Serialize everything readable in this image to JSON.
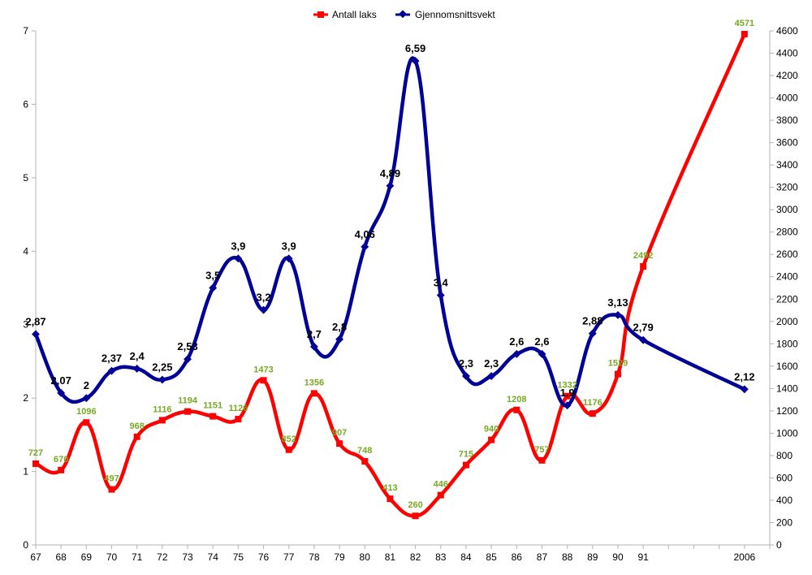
{
  "chart_data": {
    "type": "line",
    "categories": [
      "67",
      "68",
      "69",
      "70",
      "71",
      "72",
      "73",
      "74",
      "75",
      "76",
      "77",
      "78",
      "79",
      "80",
      "81",
      "82",
      "83",
      "84",
      "85",
      "86",
      "87",
      "88",
      "89",
      "90",
      "91",
      "",
      "",
      "",
      "2006"
    ],
    "series": [
      {
        "name": "Antall laks",
        "axis": "right",
        "color": "#ff0000",
        "marker": "square",
        "values": [
          727,
          670,
          1096,
          497,
          968,
          1116,
          1194,
          1151,
          1126,
          1473,
          852,
          1356,
          907,
          748,
          413,
          260,
          446,
          715,
          940,
          1208,
          757,
          1332,
          1176,
          1529,
          2492,
          null,
          null,
          null,
          4571
        ],
        "labels": [
          "727",
          "670",
          "1096",
          "497",
          "968",
          "1116",
          "1194",
          "1151",
          "1126",
          "1473",
          "852",
          "1356",
          "907",
          "748",
          "413",
          "260",
          "446",
          "715",
          "940",
          "1208",
          "757",
          "1332",
          "1176",
          "1529",
          "2492",
          "",
          "",
          "",
          "4571"
        ]
      },
      {
        "name": "Gjennomsnittsvekt",
        "axis": "left",
        "color": "#000099",
        "marker": "diamond",
        "values": [
          2.87,
          2.07,
          2,
          2.37,
          2.4,
          2.25,
          2.53,
          3.5,
          3.9,
          3.2,
          3.9,
          2.7,
          2.8,
          4.06,
          4.89,
          6.59,
          3.4,
          2.3,
          2.3,
          2.6,
          2.6,
          1.9,
          2.88,
          3.13,
          2.79,
          null,
          null,
          null,
          2.12
        ],
        "labels": [
          "2,87",
          "2,07",
          "2",
          "2,37",
          "2,4",
          "2,25",
          "2,53",
          "3,5",
          "3,9",
          "3,2",
          "3,9",
          "2,7",
          "2,8",
          "4,06",
          "4,89",
          "6,59",
          "3,4",
          "2,3",
          "2,3",
          "2,6",
          "2,6",
          "1,9",
          "2,88",
          "3,13",
          "2,79",
          "",
          "",
          "",
          "2,12"
        ]
      }
    ],
    "y_left": {
      "min": 0,
      "max": 7,
      "step": 1
    },
    "y_right": {
      "min": 0,
      "max": 4600,
      "step": 200
    },
    "legend_position": "top-center",
    "grid": false
  }
}
